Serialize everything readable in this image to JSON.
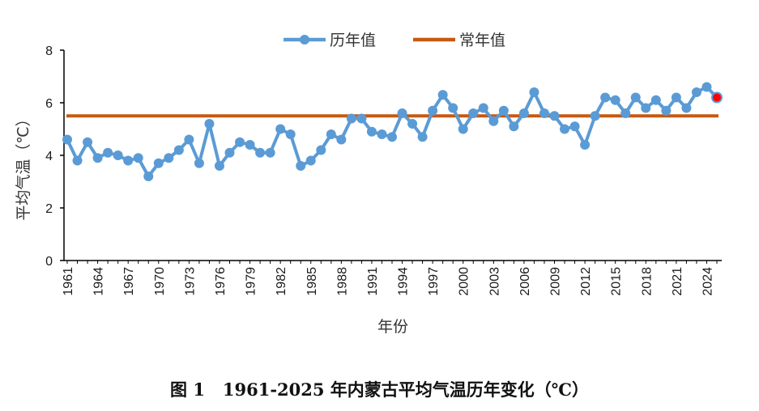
{
  "chart_data": {
    "type": "line",
    "title": "",
    "caption": "图 1   1961-2025 年内蒙古平均气温历年变化（℃）",
    "xlabel": "年份",
    "ylabel": "平均气温（℃）",
    "ylim": [
      0,
      8
    ],
    "yticks": [
      0,
      2,
      4,
      6,
      8
    ],
    "xticks": [
      1961,
      1964,
      1967,
      1970,
      1973,
      1976,
      1979,
      1982,
      1985,
      1988,
      1991,
      1994,
      1997,
      2000,
      2003,
      2006,
      2009,
      2012,
      2015,
      2018,
      2021,
      2024
    ],
    "x_start": 1961,
    "x_end": 2025,
    "legend_position": "top-center",
    "grid": false,
    "series": [
      {
        "name": "历年值",
        "color": "#5b9bd5",
        "highlight_last_color": "#ff0000",
        "x": [
          1961,
          1962,
          1963,
          1964,
          1965,
          1966,
          1967,
          1968,
          1969,
          1970,
          1971,
          1972,
          1973,
          1974,
          1975,
          1976,
          1977,
          1978,
          1979,
          1980,
          1981,
          1982,
          1983,
          1984,
          1985,
          1986,
          1987,
          1988,
          1989,
          1990,
          1991,
          1992,
          1993,
          1994,
          1995,
          1996,
          1997,
          1998,
          1999,
          2000,
          2001,
          2002,
          2003,
          2004,
          2005,
          2006,
          2007,
          2008,
          2009,
          2010,
          2011,
          2012,
          2013,
          2014,
          2015,
          2016,
          2017,
          2018,
          2019,
          2020,
          2021,
          2022,
          2023,
          2024,
          2025
        ],
        "values": [
          4.6,
          3.8,
          4.5,
          3.9,
          4.1,
          4.0,
          3.8,
          3.9,
          3.2,
          3.7,
          3.9,
          4.2,
          4.6,
          3.7,
          5.2,
          3.6,
          4.1,
          4.5,
          4.4,
          4.1,
          4.1,
          5.0,
          4.8,
          3.6,
          3.8,
          4.2,
          4.8,
          4.6,
          5.4,
          5.4,
          4.9,
          4.8,
          4.7,
          5.6,
          5.2,
          4.7,
          5.7,
          6.3,
          5.8,
          5.0,
          5.6,
          5.8,
          5.3,
          5.7,
          5.1,
          5.6,
          6.4,
          5.6,
          5.5,
          5.0,
          5.1,
          4.4,
          5.5,
          6.2,
          6.1,
          5.6,
          6.2,
          5.8,
          6.1,
          5.7,
          6.2,
          5.8,
          6.4,
          6.6,
          6.2
        ]
      },
      {
        "name": "常年值",
        "color": "#c55a11",
        "values": [
          5.5
        ]
      }
    ]
  }
}
